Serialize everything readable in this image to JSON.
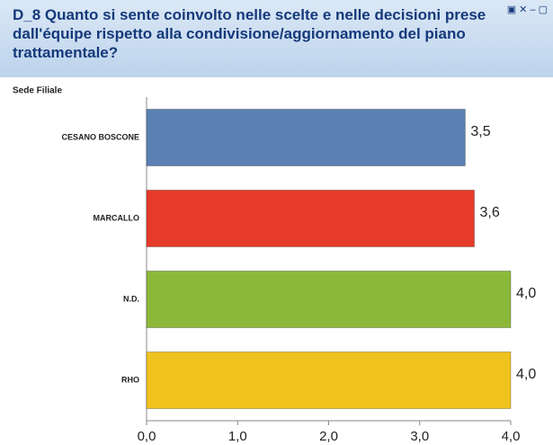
{
  "chart_data": {
    "type": "bar",
    "orientation": "horizontal",
    "title": "D_8  Quanto si sente coinvolto nelle scelte e nelle decisioni prese dall'équipe rispetto alla condivisione/aggiornamento del piano trattamentale?",
    "y_label": "Sede Filiale",
    "categories": [
      "CESANO BOSCONE",
      "MARCALLO",
      "N.D.",
      "RHO"
    ],
    "values": [
      3.5,
      3.6,
      4.0,
      4.0
    ],
    "value_labels": [
      "3,5",
      "3,6",
      "4,0",
      "4,0"
    ],
    "colors": [
      "#5b80b2",
      "#e63a2b",
      "#8cb83a",
      "#f0c21e"
    ],
    "xlim": [
      0,
      4
    ],
    "xticks": [
      {
        "value": 0,
        "label": "0,0"
      },
      {
        "value": 1,
        "label": "1,0"
      },
      {
        "value": 2,
        "label": "2,0"
      },
      {
        "value": 3,
        "label": "3,0"
      },
      {
        "value": 4,
        "label": "4,0"
      }
    ],
    "grid": false
  }
}
